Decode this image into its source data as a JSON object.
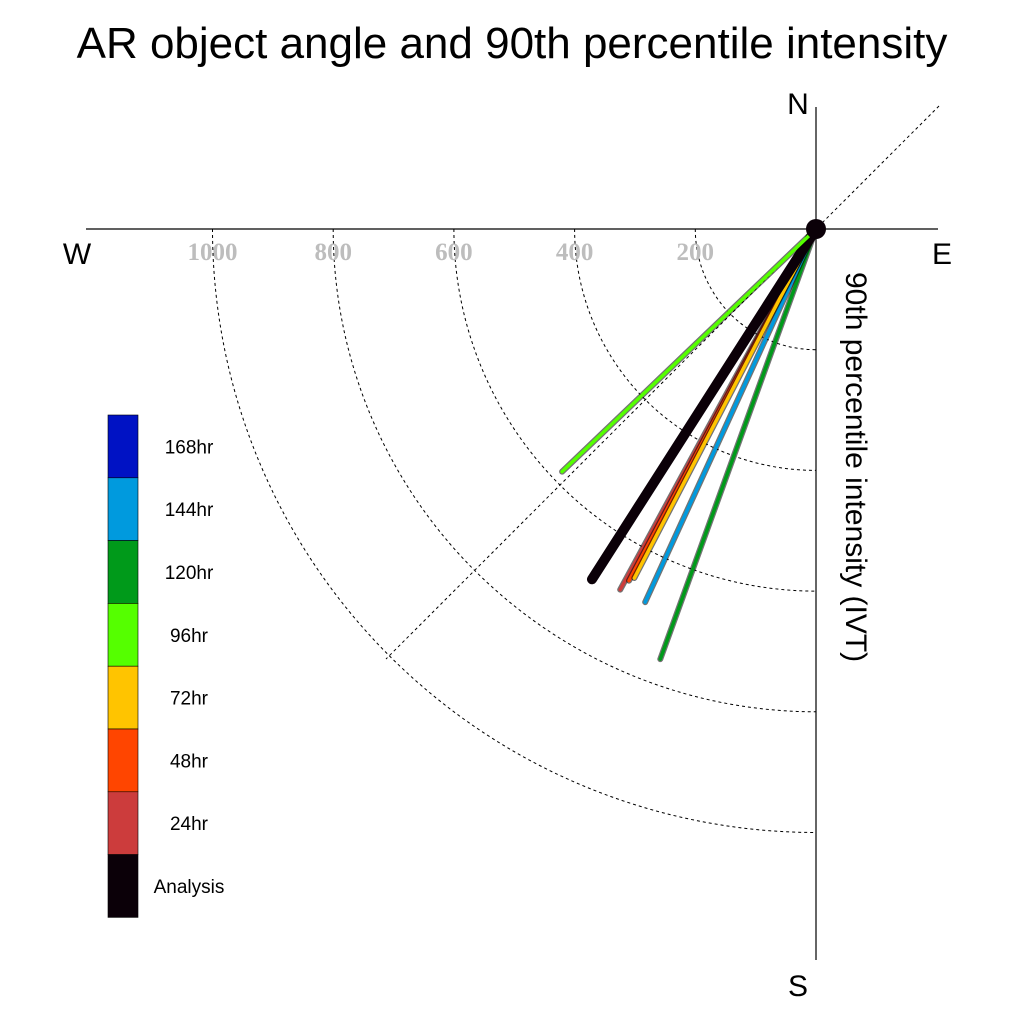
{
  "title": "AR object angle and 90th percentile intensity",
  "compass": {
    "north": "N",
    "south": "S",
    "east": "E",
    "west": "W"
  },
  "chart_data": {
    "type": "polar-vector",
    "title": "AR object angle and 90th percentile intensity",
    "ylabel": "90th percentile intensity (IVT)",
    "radial_ticks": [
      200,
      400,
      600,
      800,
      1000
    ],
    "radial_tick_labels": [
      "200",
      "400",
      "600",
      "800",
      "1000"
    ],
    "radial_max": 1200,
    "series": [
      {
        "name": "120hr",
        "angle_deg": 199.9,
        "intensity": 758,
        "color": "#009a1a"
      },
      {
        "name": "144hr",
        "angle_deg": 204.6,
        "intensity": 680,
        "color": "#009ade"
      },
      {
        "name": "24hr",
        "angle_deg": 208.5,
        "intensity": 680,
        "color": "#cc3c3c"
      },
      {
        "name": "48hr",
        "angle_deg": 208.0,
        "intensity": 660,
        "color": "#ff4500"
      },
      {
        "name": "72hr",
        "angle_deg": 207.5,
        "intensity": 652,
        "color": "#ffc400"
      },
      {
        "name": "Analysis",
        "angle_deg": 212.6,
        "intensity": 689,
        "color": "#0b0008"
      },
      {
        "name": "96hr",
        "angle_deg": 226.3,
        "intensity": 582,
        "color": "#55ff00"
      }
    ],
    "legend": [
      {
        "label": "168hr",
        "color": "#0012c4"
      },
      {
        "label": "144hr",
        "color": "#009ade"
      },
      {
        "label": "120hr",
        "color": "#009a1a"
      },
      {
        "label": "96hr",
        "color": "#55ff00"
      },
      {
        "label": "72hr",
        "color": "#ffc400"
      },
      {
        "label": "48hr",
        "color": "#ff4500"
      },
      {
        "label": "24hr",
        "color": "#cc3c3c"
      },
      {
        "label": "Analysis",
        "color": "#0b0008"
      }
    ]
  }
}
